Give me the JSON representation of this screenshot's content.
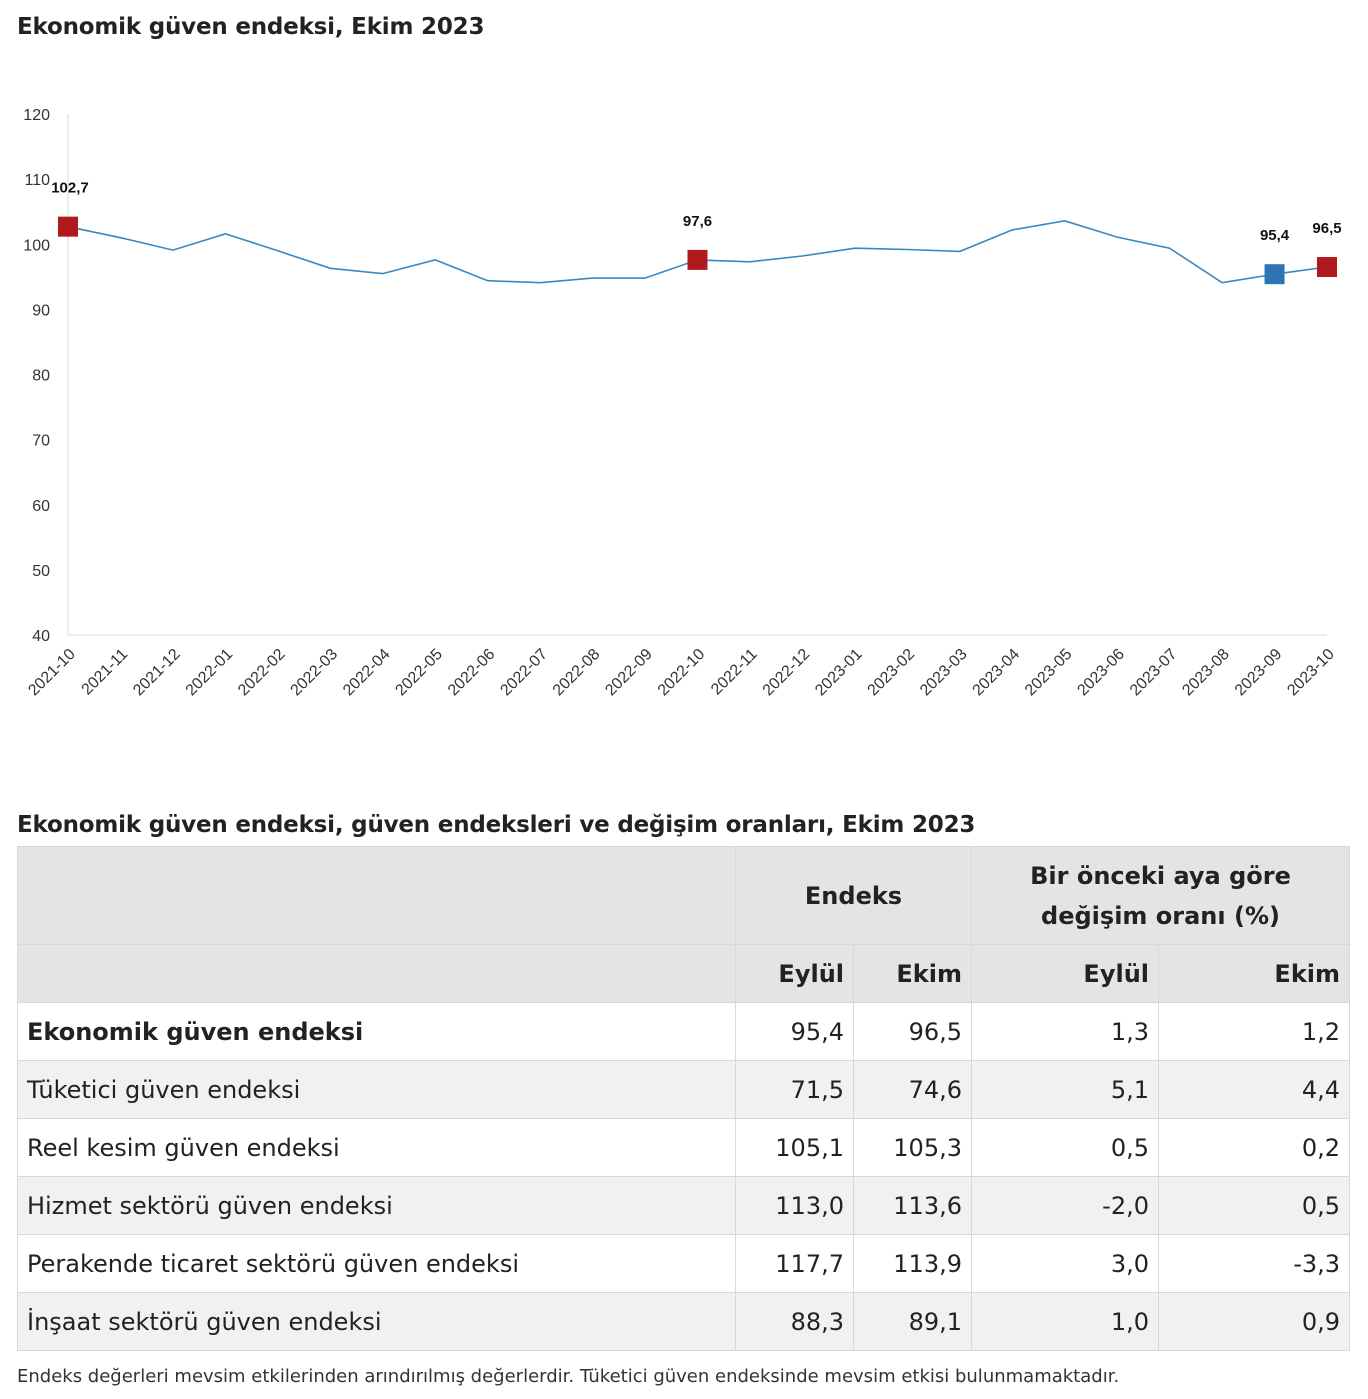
{
  "chart_data": {
    "type": "line",
    "title": "Ekonomik güven endeksi, Ekim 2023",
    "ylim": [
      40,
      120
    ],
    "y_ticks": [
      "120",
      "110",
      "100",
      "90",
      "80",
      "70",
      "60",
      "50",
      "40"
    ],
    "categories": [
      "2021-10",
      "2021-11",
      "2021-12",
      "2022-01",
      "2022-02",
      "2022-03",
      "2022-04",
      "2022-05",
      "2022-06",
      "2022-07",
      "2022-08",
      "2022-09",
      "2022-10",
      "2022-11",
      "2022-12",
      "2023-01",
      "2023-02",
      "2023-03",
      "2023-04",
      "2023-05",
      "2023-06",
      "2023-07",
      "2023-08",
      "2023-09",
      "2023-10"
    ],
    "series": [
      {
        "values": [
          102.7,
          101.0,
          99.1,
          101.6,
          99.0,
          96.3,
          95.5,
          97.6,
          94.4,
          94.1,
          94.8,
          94.8,
          97.6,
          97.3,
          98.2,
          99.4,
          99.2,
          98.9,
          102.2,
          103.6,
          101.1,
          99.4,
          94.1,
          95.4,
          96.5
        ]
      }
    ],
    "highlights": [
      {
        "index": 0,
        "label": "102,7",
        "color": "#b0191e"
      },
      {
        "index": 12,
        "label": "97,6",
        "color": "#b0191e"
      },
      {
        "index": 23,
        "label": "95,4",
        "color": "#2e75b6"
      },
      {
        "index": 24,
        "label": "96,5",
        "color": "#b0191e"
      }
    ],
    "line_color": "#3b87c0",
    "grid": false,
    "legend": "none"
  },
  "table": {
    "title": "Ekonomik güven endeksi, güven endeksleri ve değişim oranları, Ekim 2023",
    "group_headers": {
      "endeks": "Endeks",
      "change_line1": "Bir önceki aya göre",
      "change_line2": "değişim oranı (%)"
    },
    "sub_headers": [
      "Eylül",
      "Ekim",
      "Eylül",
      "Ekim"
    ],
    "rows": [
      {
        "label": "Ekonomik güven endeksi",
        "values": [
          "95,4",
          "96,5",
          "1,3",
          "1,2"
        ]
      },
      {
        "label": "Tüketici güven endeksi",
        "values": [
          "71,5",
          "74,6",
          "5,1",
          "4,4"
        ]
      },
      {
        "label": "Reel kesim güven endeksi",
        "values": [
          "105,1",
          "105,3",
          "0,5",
          "0,2"
        ]
      },
      {
        "label": "Hizmet sektörü güven endeksi",
        "values": [
          "113,0",
          "113,6",
          "-2,0",
          "0,5"
        ]
      },
      {
        "label": "Perakende ticaret sektörü güven endeksi",
        "values": [
          "117,7",
          "113,9",
          "3,0",
          "-3,3"
        ]
      },
      {
        "label": "İnşaat sektörü güven endeksi",
        "values": [
          "88,3",
          "89,1",
          "1,0",
          "0,9"
        ]
      }
    ],
    "footnote": "Endeks değerleri mevsim etkilerinden arındırılmış değerlerdir. Tüketici güven endeksinde mevsim etkisi bulunmamaktadır."
  }
}
